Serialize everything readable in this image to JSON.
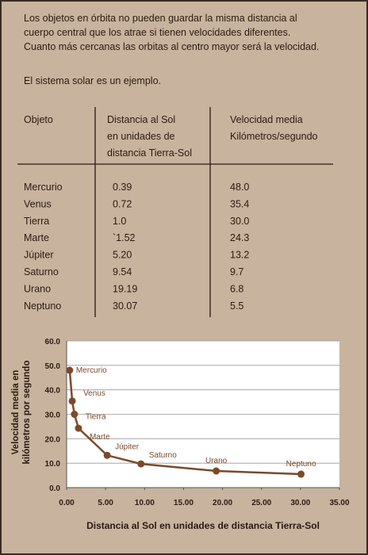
{
  "intro": [
    "Los objetos en órbita no pueden guardar la misma distancia al",
    "cuerpo central que los atrae si tienen velocidades diferentes.",
    "Cuanto más cercanas las orbitas al centro mayor será la velocidad."
  ],
  "example": "El sistema solar es un ejemplo.",
  "table": {
    "headers": [
      [
        "Objeto"
      ],
      [
        "Distancia al Sol",
        "en unidades de",
        "distancia Tierra-Sol"
      ],
      [
        "Velocidad media",
        "Kilómetros/segundo"
      ]
    ],
    "rows": [
      [
        "Mercurio",
        "0.39",
        "48.0"
      ],
      [
        "Venus",
        "0.72",
        "35.4"
      ],
      [
        "Tierra",
        "1.0",
        "30.0"
      ],
      [
        "Marte",
        "`1.52",
        "24.3"
      ],
      [
        "Júpiter",
        "5.20",
        "13.2"
      ],
      [
        "Saturno",
        "9.54",
        "9.7"
      ],
      [
        "Urano",
        "19.19",
        "6.8"
      ],
      [
        "Neptuno",
        "30.07",
        "5.5"
      ]
    ]
  },
  "chart_data": {
    "type": "line",
    "x_label": "Distancia al Sol en unidades de distancia Tierra-Sol",
    "y_label": [
      "Velocidad media en",
      "kilómetros por segundo"
    ],
    "labels": [
      "Mercurio",
      "Venus",
      "Tierra",
      "Marte",
      "Júpiter",
      "Saturno",
      "Urano",
      "Neptuno"
    ],
    "x": [
      0.39,
      0.72,
      1.0,
      1.52,
      5.2,
      9.54,
      19.19,
      30.07
    ],
    "values": [
      48.0,
      35.4,
      30.0,
      24.3,
      13.2,
      9.7,
      6.8,
      5.5
    ],
    "color": "#7b4a2c",
    "xlim": [
      0,
      35
    ],
    "ylim": [
      0,
      60
    ],
    "xticks": [
      {
        "value": 0,
        "label": "0.00"
      },
      {
        "value": 5,
        "label": "5.00"
      },
      {
        "value": 10,
        "label": "10.00"
      },
      {
        "value": 15,
        "label": "15.00"
      },
      {
        "value": 20,
        "label": "20.00"
      },
      {
        "value": 25,
        "label": "25.00"
      },
      {
        "value": 30,
        "label": "30.00"
      },
      {
        "value": 35,
        "label": "35.00"
      }
    ],
    "yticks": [
      {
        "value": 0,
        "label": "0.0"
      },
      {
        "value": 10,
        "label": "10.0"
      },
      {
        "value": 20,
        "label": "20.0"
      },
      {
        "value": 30,
        "label": "30.0"
      },
      {
        "value": 40,
        "label": "40.0"
      },
      {
        "value": 50,
        "label": "50.0"
      },
      {
        "value": 60,
        "label": "60.0"
      }
    ],
    "grid": true
  }
}
